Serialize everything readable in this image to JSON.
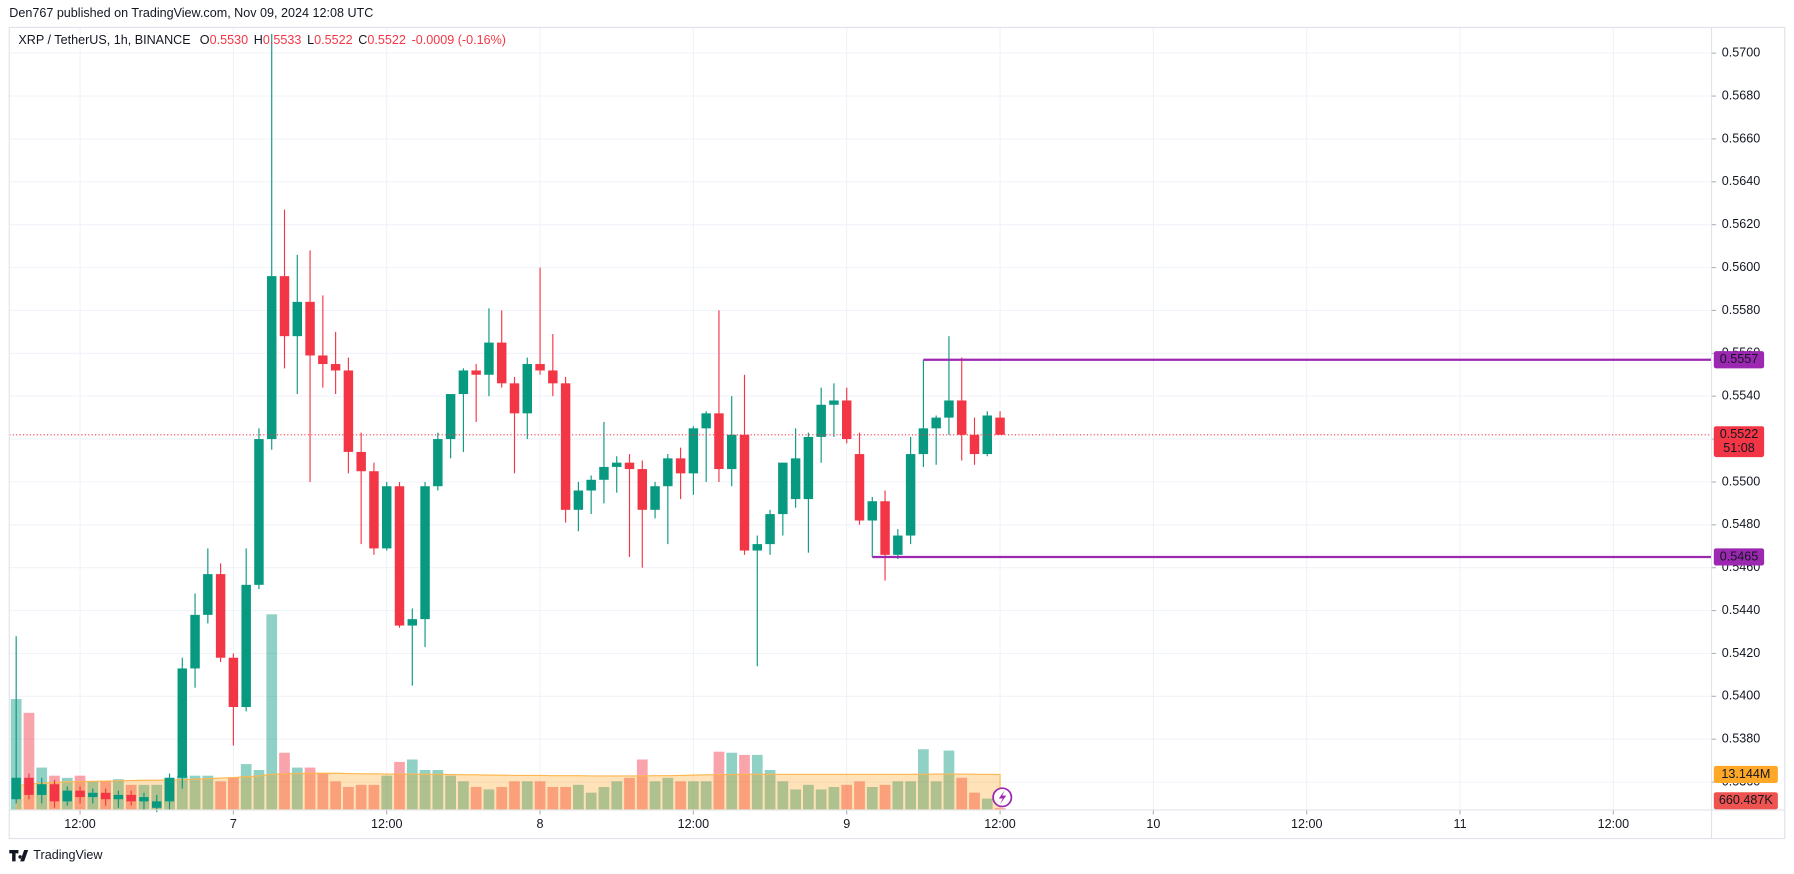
{
  "chart_data": {
    "type": "candlestick",
    "header": "Den767 published on TradingView.com, Nov 09, 2024 12:08 UTC",
    "legend": {
      "symbol": "XRP / TetherUS, 1h, BINANCE",
      "fields": [
        {
          "key": "O",
          "value": "0.5530"
        },
        {
          "key": "H",
          "value": "0.5533"
        },
        {
          "key": "L",
          "value": "0.5522"
        },
        {
          "key": "C",
          "value": "0.5522"
        }
      ],
      "change": "-0.0009 (-0.16%)"
    },
    "brand": "TradingView",
    "up_color": "#089981",
    "down_color": "#f23645",
    "open": [
      0.5352,
      0.5362,
      0.5354,
      0.5359,
      0.5351,
      0.5356,
      0.5353,
      0.5355,
      0.5352,
      0.5354,
      0.5351,
      0.5348,
      0.5351,
      0.5362,
      0.5413,
      0.5438,
      0.5457,
      0.5418,
      0.5395,
      0.5452,
      0.552,
      0.5596,
      0.5568,
      0.5584,
      0.5559,
      0.5555,
      0.5552,
      0.5514,
      0.5505,
      0.5469,
      0.5498,
      0.5433,
      0.5436,
      0.5498,
      0.552,
      0.5541,
      0.5552,
      0.555,
      0.5565,
      0.5546,
      0.5532,
      0.5555,
      0.5552,
      0.5546,
      0.5487,
      0.5496,
      0.5501,
      0.5507,
      0.5509,
      0.5506,
      0.5487,
      0.5498,
      0.5511,
      0.5504,
      0.5525,
      0.5532,
      0.5506,
      0.5522,
      0.5468,
      0.5471,
      0.5485,
      0.5492,
      0.5492,
      0.5521,
      0.5536,
      0.5538,
      0.5513,
      0.5482,
      0.5491,
      0.5466,
      0.5475,
      0.5513,
      0.5525,
      0.553,
      0.5538,
      0.5522,
      0.5513,
      0.553
    ],
    "high": [
      0.5428,
      0.5364,
      0.5362,
      0.5361,
      0.5358,
      0.5358,
      0.5357,
      0.5357,
      0.5356,
      0.5356,
      0.5355,
      0.5354,
      0.5364,
      0.5418,
      0.5448,
      0.5469,
      0.5462,
      0.542,
      0.5469,
      0.5525,
      0.5709,
      0.5627,
      0.5606,
      0.5608,
      0.5587,
      0.557,
      0.5558,
      0.5523,
      0.5509,
      0.55,
      0.55,
      0.5441,
      0.55,
      0.5523,
      0.5541,
      0.5553,
      0.5555,
      0.5581,
      0.558,
      0.5549,
      0.5558,
      0.56,
      0.5569,
      0.5549,
      0.55,
      0.5503,
      0.5528,
      0.5512,
      0.5513,
      0.551,
      0.55,
      0.5513,
      0.5516,
      0.5526,
      0.5533,
      0.558,
      0.554,
      0.555,
      0.5475,
      0.5487,
      0.5509,
      0.5525,
      0.5523,
      0.5544,
      0.5546,
      0.5544,
      0.5523,
      0.5493,
      0.5496,
      0.5478,
      0.5521,
      0.5557,
      0.5531,
      0.5568,
      0.5558,
      0.553,
      0.5533,
      0.5533
    ],
    "low": [
      0.535,
      0.5352,
      0.535,
      0.5348,
      0.5349,
      0.535,
      0.535,
      0.5349,
      0.5348,
      0.5349,
      0.5347,
      0.5346,
      0.5347,
      0.5357,
      0.5404,
      0.5434,
      0.5416,
      0.5377,
      0.5393,
      0.545,
      0.5515,
      0.5553,
      0.5541,
      0.55,
      0.5544,
      0.5541,
      0.5504,
      0.5471,
      0.5466,
      0.5468,
      0.5432,
      0.5405,
      0.5423,
      0.5496,
      0.5511,
      0.5514,
      0.5528,
      0.554,
      0.5544,
      0.5504,
      0.552,
      0.555,
      0.554,
      0.5481,
      0.5477,
      0.5485,
      0.549,
      0.5495,
      0.5465,
      0.546,
      0.5483,
      0.5471,
      0.5492,
      0.5494,
      0.55,
      0.55,
      0.5498,
      0.5466,
      0.5414,
      0.5466,
      0.5475,
      0.5488,
      0.5467,
      0.5509,
      0.5521,
      0.5518,
      0.548,
      0.5465,
      0.5454,
      0.5464,
      0.5471,
      0.5507,
      0.5508,
      0.5522,
      0.551,
      0.5508,
      0.5512,
      0.5522
    ],
    "close": [
      0.5362,
      0.5354,
      0.5359,
      0.5351,
      0.5356,
      0.5353,
      0.5355,
      0.5352,
      0.5354,
      0.5351,
      0.5353,
      0.5351,
      0.5362,
      0.5413,
      0.5438,
      0.5457,
      0.5418,
      0.5395,
      0.5452,
      0.552,
      0.5596,
      0.5568,
      0.5584,
      0.5559,
      0.5555,
      0.5552,
      0.5514,
      0.5505,
      0.5469,
      0.5498,
      0.5433,
      0.5436,
      0.5498,
      0.552,
      0.5541,
      0.5552,
      0.555,
      0.5565,
      0.5546,
      0.5532,
      0.5555,
      0.5552,
      0.5546,
      0.5487,
      0.5496,
      0.5501,
      0.5507,
      0.5509,
      0.5506,
      0.5487,
      0.5498,
      0.5511,
      0.5504,
      0.5525,
      0.5532,
      0.5506,
      0.5522,
      0.5468,
      0.5471,
      0.5485,
      0.5509,
      0.5511,
      0.5521,
      0.5536,
      0.5538,
      0.552,
      0.5482,
      0.5491,
      0.5466,
      0.5475,
      0.5513,
      0.5525,
      0.553,
      0.5538,
      0.5522,
      0.5513,
      0.5531,
      0.5522
    ],
    "volume": [
      41.1,
      36.0,
      15.7,
      12.7,
      11.9,
      12.7,
      10.6,
      10.6,
      11.4,
      9.3,
      9.3,
      9.3,
      11.9,
      12.7,
      12.7,
      12.7,
      10.6,
      11.9,
      17.0,
      14.8,
      72.5,
      21.2,
      15.7,
      15.7,
      13.6,
      10.6,
      8.5,
      9.3,
      9.3,
      12.7,
      17.8,
      18.7,
      14.8,
      14.8,
      12.7,
      10.6,
      8.5,
      7.6,
      8.5,
      10.6,
      10.6,
      10.6,
      8.5,
      8.5,
      9.3,
      6.4,
      8.5,
      10.6,
      11.9,
      18.7,
      10.6,
      11.9,
      10.6,
      10.6,
      10.6,
      21.6,
      21.2,
      20.4,
      20.4,
      14.8,
      10.6,
      7.6,
      9.3,
      7.6,
      8.5,
      9.3,
      10.6,
      8.5,
      9.3,
      10.6,
      10.6,
      22.5,
      10.6,
      22.0,
      11.9,
      6.4,
      4.2,
      0.660487
    ],
    "volume_ma": [
      9.0,
      9.5,
      10.0,
      10.2,
      10.4,
      10.5,
      10.6,
      10.7,
      10.8,
      10.9,
      11.0,
      11.0,
      11.1,
      11.2,
      11.4,
      11.6,
      11.8,
      12.0,
      12.3,
      12.6,
      13.2,
      13.4,
      13.5,
      13.6,
      13.6,
      13.6,
      13.5,
      13.4,
      13.4,
      13.3,
      13.3,
      13.3,
      13.2,
      13.2,
      13.1,
      13.0,
      13.0,
      12.9,
      12.9,
      12.8,
      12.8,
      12.8,
      12.7,
      12.7,
      12.7,
      12.6,
      12.6,
      12.6,
      12.6,
      12.6,
      12.7,
      12.7,
      12.8,
      12.9,
      13.0,
      13.1,
      13.1,
      13.2,
      13.2,
      13.2,
      13.2,
      13.2,
      13.2,
      13.2,
      13.2,
      13.2,
      13.2,
      13.2,
      13.2,
      13.2,
      13.2,
      13.2,
      13.3,
      13.3,
      13.3,
      13.2,
      13.2,
      13.144
    ],
    "volume_last_label": "660.487K",
    "volume_ma_label": "13.144M",
    "volume_ylim": [
      0,
      290
    ],
    "xlim": [
      -0.54,
      132.68
    ],
    "xticks": [
      {
        "value": 5,
        "label": "12:00"
      },
      {
        "value": 17,
        "label": "7"
      },
      {
        "value": 29,
        "label": "12:00"
      },
      {
        "value": 41,
        "label": "8"
      },
      {
        "value": 53,
        "label": "12:00"
      },
      {
        "value": 65,
        "label": "9"
      },
      {
        "value": 77,
        "label": "12:00"
      },
      {
        "value": 89,
        "label": "10"
      },
      {
        "value": 101,
        "label": "12:00"
      },
      {
        "value": 113,
        "label": "11"
      },
      {
        "value": 125,
        "label": "12:00"
      }
    ],
    "ylim": [
      0.5347,
      0.5712
    ],
    "yticks": [
      {
        "value": 0.536,
        "label": "0.5360"
      },
      {
        "value": 0.538,
        "label": "0.5380"
      },
      {
        "value": 0.54,
        "label": "0.5400"
      },
      {
        "value": 0.542,
        "label": "0.5420"
      },
      {
        "value": 0.544,
        "label": "0.5440"
      },
      {
        "value": 0.546,
        "label": "0.5460"
      },
      {
        "value": 0.548,
        "label": "0.5480"
      },
      {
        "value": 0.55,
        "label": "0.5500"
      },
      {
        "value": 0.552,
        "label": "0.5520"
      },
      {
        "value": 0.554,
        "label": "0.5540"
      },
      {
        "value": 0.556,
        "label": "0.5560"
      },
      {
        "value": 0.558,
        "label": "0.5580"
      },
      {
        "value": 0.56,
        "label": "0.5600"
      },
      {
        "value": 0.562,
        "label": "0.5620"
      },
      {
        "value": 0.564,
        "label": "0.5640"
      },
      {
        "value": 0.566,
        "label": "0.5660"
      },
      {
        "value": 0.568,
        "label": "0.5680"
      },
      {
        "value": 0.57,
        "label": "0.5700"
      }
    ],
    "grid": true,
    "hlines": [
      {
        "value": 0.5557,
        "label": "0.5557",
        "x_start": 71,
        "color": "#9c27b0"
      },
      {
        "value": 0.5465,
        "label": "0.5465",
        "x_start": 67,
        "color": "#9c27b0"
      }
    ],
    "last_price": {
      "value": 0.5522,
      "label": "0.5522"
    },
    "countdown": "51:08"
  }
}
